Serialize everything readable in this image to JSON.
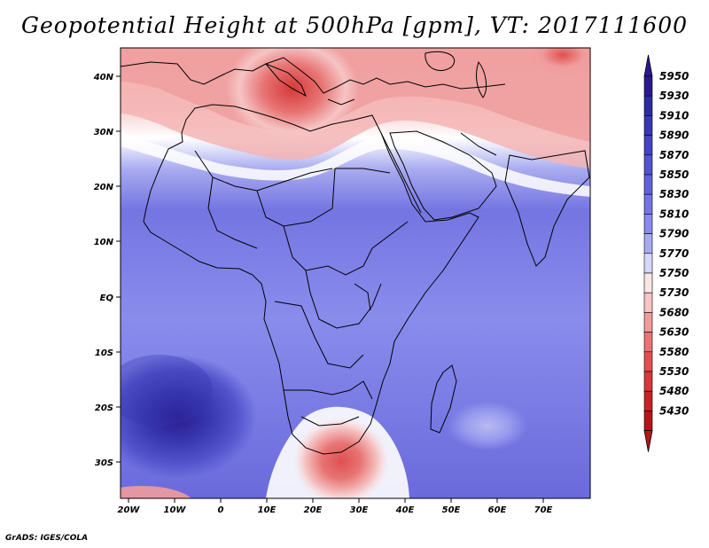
{
  "title": "Geopotential Height at 500hPa [gpm], VT: 2017111600",
  "footer": "GrADS: IGES/COLA",
  "map": {
    "lat_labels": [
      "40N",
      "30N",
      "20N",
      "10N",
      "EQ",
      "10S",
      "20S",
      "30S"
    ],
    "lon_labels": [
      "20W",
      "10W",
      "0",
      "10E",
      "20E",
      "30E",
      "40E",
      "50E",
      "60E",
      "70E"
    ]
  },
  "colorbar": {
    "levels": [
      "5950",
      "5930",
      "5910",
      "5890",
      "5870",
      "5850",
      "5830",
      "5810",
      "5790",
      "5770",
      "5750",
      "5730",
      "5680",
      "5630",
      "5580",
      "5530",
      "5480",
      "5430"
    ],
    "colors": [
      "#2a1a8c",
      "#2c2ca0",
      "#3737b0",
      "#4444c0",
      "#5353cc",
      "#6363d8",
      "#7575e2",
      "#8a8aea",
      "#a8aaf0",
      "#d6d8f8",
      "#fae6e6",
      "#f6c4c4",
      "#f09c9c",
      "#e87474",
      "#e05050",
      "#d43a3a",
      "#c42424",
      "#b01818"
    ]
  },
  "legend_colors": {
    "high": "#3737b0",
    "low": "#d43a3a",
    "neutral": "#ffffff"
  }
}
